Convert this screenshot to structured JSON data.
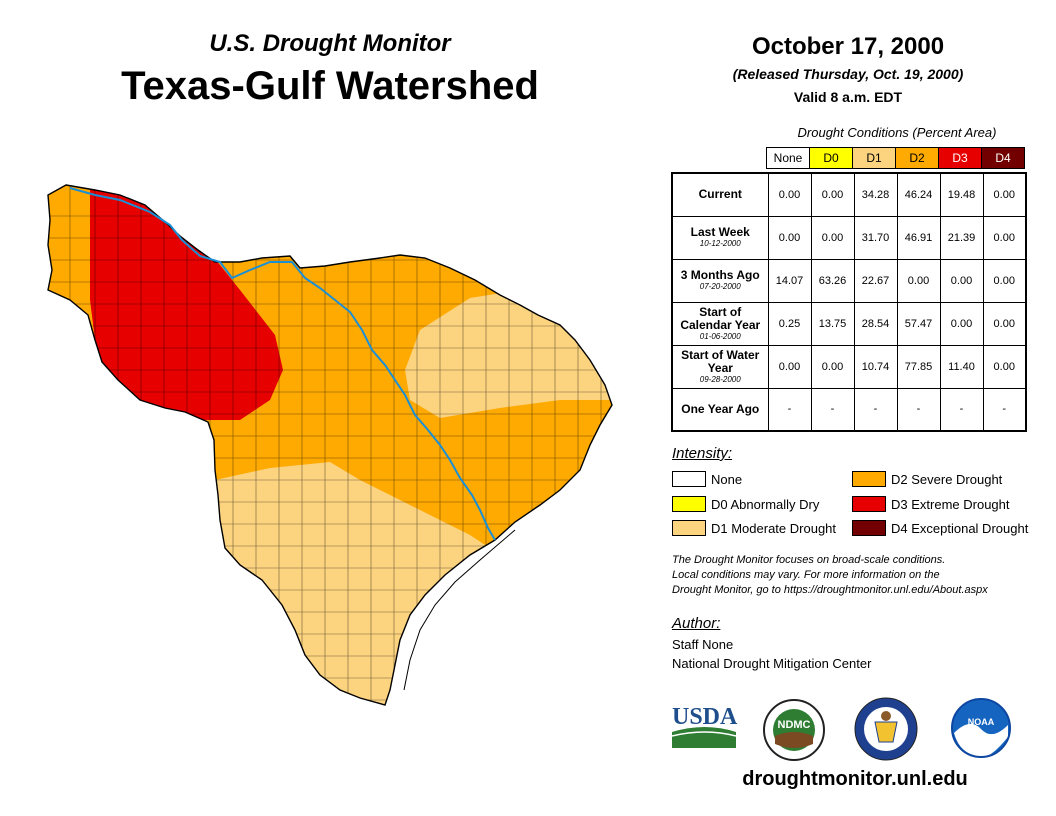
{
  "header": {
    "subtitle": "U.S. Drought Monitor",
    "title": "Texas-Gulf Watershed",
    "date": "October 17, 2000",
    "released": "(Released Thursday, Oct. 19, 2000)",
    "valid": "Valid 8 a.m. EDT"
  },
  "table": {
    "caption": "Drought Conditions (Percent Area)",
    "columns": [
      "None",
      "D0",
      "D1",
      "D2",
      "D3",
      "D4"
    ],
    "column_colors": [
      "#ffffff",
      "#ffff00",
      "#fcd37f",
      "#ffaa00",
      "#e60000",
      "#730000"
    ],
    "rows": [
      {
        "label": "Current",
        "sublabel": "",
        "values": [
          "0.00",
          "0.00",
          "34.28",
          "46.24",
          "19.48",
          "0.00"
        ]
      },
      {
        "label": "Last Week",
        "sublabel": "10-12-2000",
        "values": [
          "0.00",
          "0.00",
          "31.70",
          "46.91",
          "21.39",
          "0.00"
        ]
      },
      {
        "label": "3 Months Ago",
        "sublabel": "07-20-2000",
        "values": [
          "14.07",
          "63.26",
          "22.67",
          "0.00",
          "0.00",
          "0.00"
        ]
      },
      {
        "label": "Start of Calendar Year",
        "sublabel": "01-06-2000",
        "values": [
          "0.25",
          "13.75",
          "28.54",
          "57.47",
          "0.00",
          "0.00"
        ]
      },
      {
        "label": "Start of Water Year",
        "sublabel": "09-28-2000",
        "values": [
          "0.00",
          "0.00",
          "10.74",
          "77.85",
          "11.40",
          "0.00"
        ]
      },
      {
        "label": "One Year Ago",
        "sublabel": "",
        "values": [
          "-",
          "-",
          "-",
          "-",
          "-",
          "-"
        ]
      }
    ]
  },
  "legend": {
    "title": "Intensity:",
    "items": [
      {
        "label": "None",
        "color": "#ffffff"
      },
      {
        "label": "D0 Abnormally Dry",
        "color": "#ffff00"
      },
      {
        "label": "D1 Moderate Drought",
        "color": "#fcd37f"
      },
      {
        "label": "D2 Severe Drought",
        "color": "#ffaa00"
      },
      {
        "label": "D3 Extreme Drought",
        "color": "#e60000"
      },
      {
        "label": "D4 Exceptional Drought",
        "color": "#730000"
      }
    ]
  },
  "note": {
    "line1": "The Drought Monitor focuses on broad-scale conditions.",
    "line2": "Local conditions may vary. For more information on the",
    "line3": "Drought Monitor, go to https://droughtmonitor.unl.edu/About.aspx"
  },
  "author": {
    "title": "Author:",
    "name": "Staff None",
    "organization": "National Drought Mitigation Center"
  },
  "logos": {
    "usda": "USDA",
    "ndmc": "NDMC",
    "noaa": "NOAA"
  },
  "website": "droughtmonitor.unl.edu"
}
